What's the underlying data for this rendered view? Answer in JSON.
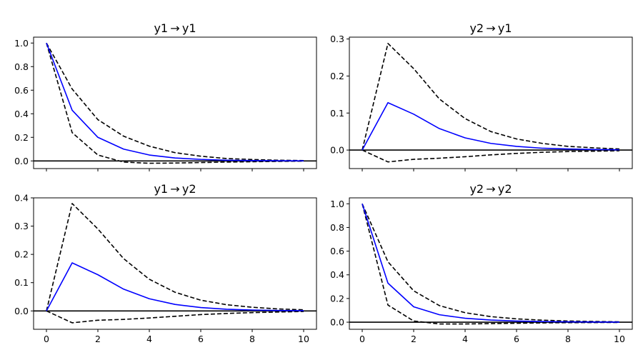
{
  "chart_data": [
    {
      "type": "line",
      "title": "y1 → y1",
      "x": [
        0,
        1,
        2,
        3,
        4,
        5,
        6,
        7,
        8,
        9,
        10
      ],
      "series": [
        {
          "role": "irf",
          "color": "#0000ff",
          "dash": false,
          "values": [
            1.0,
            0.43,
            0.2,
            0.1,
            0.05,
            0.025,
            0.013,
            0.006,
            0.003,
            0.0015,
            0.0007
          ]
        },
        {
          "role": "upper",
          "color": "#000000",
          "dash": true,
          "values": [
            1.0,
            0.61,
            0.35,
            0.21,
            0.125,
            0.07,
            0.04,
            0.02,
            0.012,
            0.006,
            0.003
          ]
        },
        {
          "role": "lower",
          "color": "#000000",
          "dash": true,
          "values": [
            1.0,
            0.24,
            0.05,
            -0.01,
            -0.02,
            -0.018,
            -0.014,
            -0.01,
            -0.007,
            -0.004,
            -0.002
          ]
        }
      ],
      "ylim": [
        -0.065,
        1.05
      ],
      "yticks": [
        0.0,
        0.2,
        0.4,
        0.6,
        0.8,
        1.0
      ],
      "ytick_labels": [
        "0.0",
        "0.2",
        "0.4",
        "0.6",
        "0.8",
        "1.0"
      ],
      "xticks": [
        0,
        2,
        4,
        6,
        8,
        10
      ],
      "xtick_labels": [],
      "zero_line": true
    },
    {
      "type": "line",
      "title": "y2 → y1",
      "x": [
        0,
        1,
        2,
        3,
        4,
        5,
        6,
        7,
        8,
        9,
        10
      ],
      "series": [
        {
          "role": "irf",
          "color": "#0000ff",
          "dash": false,
          "values": [
            0.0,
            0.128,
            0.097,
            0.058,
            0.033,
            0.018,
            0.01,
            0.005,
            0.003,
            0.0015,
            0.0008
          ]
        },
        {
          "role": "upper",
          "color": "#000000",
          "dash": true,
          "values": [
            0.0,
            0.288,
            0.22,
            0.138,
            0.085,
            0.05,
            0.03,
            0.018,
            0.01,
            0.006,
            0.003
          ]
        },
        {
          "role": "lower",
          "color": "#000000",
          "dash": true,
          "values": [
            0.0,
            -0.032,
            -0.025,
            -0.022,
            -0.018,
            -0.013,
            -0.009,
            -0.006,
            -0.004,
            -0.003,
            -0.002
          ]
        }
      ],
      "ylim": [
        -0.05,
        0.305
      ],
      "yticks": [
        0.0,
        0.1,
        0.2,
        0.3
      ],
      "ytick_labels": [
        "0.0",
        "0.1",
        "0.2",
        "0.3"
      ],
      "xticks": [
        0,
        2,
        4,
        6,
        8,
        10
      ],
      "xtick_labels": [],
      "zero_line": true
    },
    {
      "type": "line",
      "title": "y1 → y2",
      "x": [
        0,
        1,
        2,
        3,
        4,
        5,
        6,
        7,
        8,
        9,
        10
      ],
      "series": [
        {
          "role": "irf",
          "color": "#0000ff",
          "dash": false,
          "values": [
            0.0,
            0.17,
            0.128,
            0.077,
            0.043,
            0.023,
            0.012,
            0.006,
            0.003,
            0.0015,
            0.0008
          ]
        },
        {
          "role": "upper",
          "color": "#000000",
          "dash": true,
          "values": [
            0.0,
            0.38,
            0.29,
            0.185,
            0.112,
            0.066,
            0.038,
            0.022,
            0.013,
            0.007,
            0.004
          ]
        },
        {
          "role": "lower",
          "color": "#000000",
          "dash": true,
          "values": [
            0.0,
            -0.042,
            -0.033,
            -0.03,
            -0.025,
            -0.019,
            -0.013,
            -0.009,
            -0.006,
            -0.004,
            -0.002
          ]
        }
      ],
      "ylim": [
        -0.065,
        0.4
      ],
      "yticks": [
        0.0,
        0.1,
        0.2,
        0.3,
        0.4
      ],
      "ytick_labels": [
        "0.0",
        "0.1",
        "0.2",
        "0.3",
        "0.4"
      ],
      "xticks": [
        0,
        2,
        4,
        6,
        8,
        10
      ],
      "xtick_labels": [
        "0",
        "2",
        "4",
        "6",
        "8",
        "10"
      ],
      "zero_line": true
    },
    {
      "type": "line",
      "title": "y2 → y2",
      "x": [
        0,
        1,
        2,
        3,
        4,
        5,
        6,
        7,
        8,
        9,
        10
      ],
      "series": [
        {
          "role": "irf",
          "color": "#0000ff",
          "dash": false,
          "values": [
            1.0,
            0.33,
            0.13,
            0.063,
            0.033,
            0.018,
            0.01,
            0.005,
            0.003,
            0.0015,
            0.0008
          ]
        },
        {
          "role": "upper",
          "color": "#000000",
          "dash": true,
          "values": [
            1.0,
            0.51,
            0.265,
            0.14,
            0.08,
            0.047,
            0.028,
            0.017,
            0.01,
            0.006,
            0.003
          ]
        },
        {
          "role": "lower",
          "color": "#000000",
          "dash": true,
          "values": [
            1.0,
            0.145,
            0.01,
            -0.015,
            -0.015,
            -0.012,
            -0.009,
            -0.006,
            -0.004,
            -0.003,
            -0.002
          ]
        }
      ],
      "ylim": [
        -0.06,
        1.05
      ],
      "yticks": [
        0.0,
        0.2,
        0.4,
        0.6,
        0.8,
        1.0
      ],
      "ytick_labels": [
        "0.0",
        "0.2",
        "0.4",
        "0.6",
        "0.8",
        "1.0"
      ],
      "xticks": [
        0,
        2,
        4,
        6,
        8,
        10
      ],
      "xtick_labels": [
        "0",
        "2",
        "4",
        "6",
        "8",
        "10"
      ],
      "zero_line": true
    }
  ]
}
